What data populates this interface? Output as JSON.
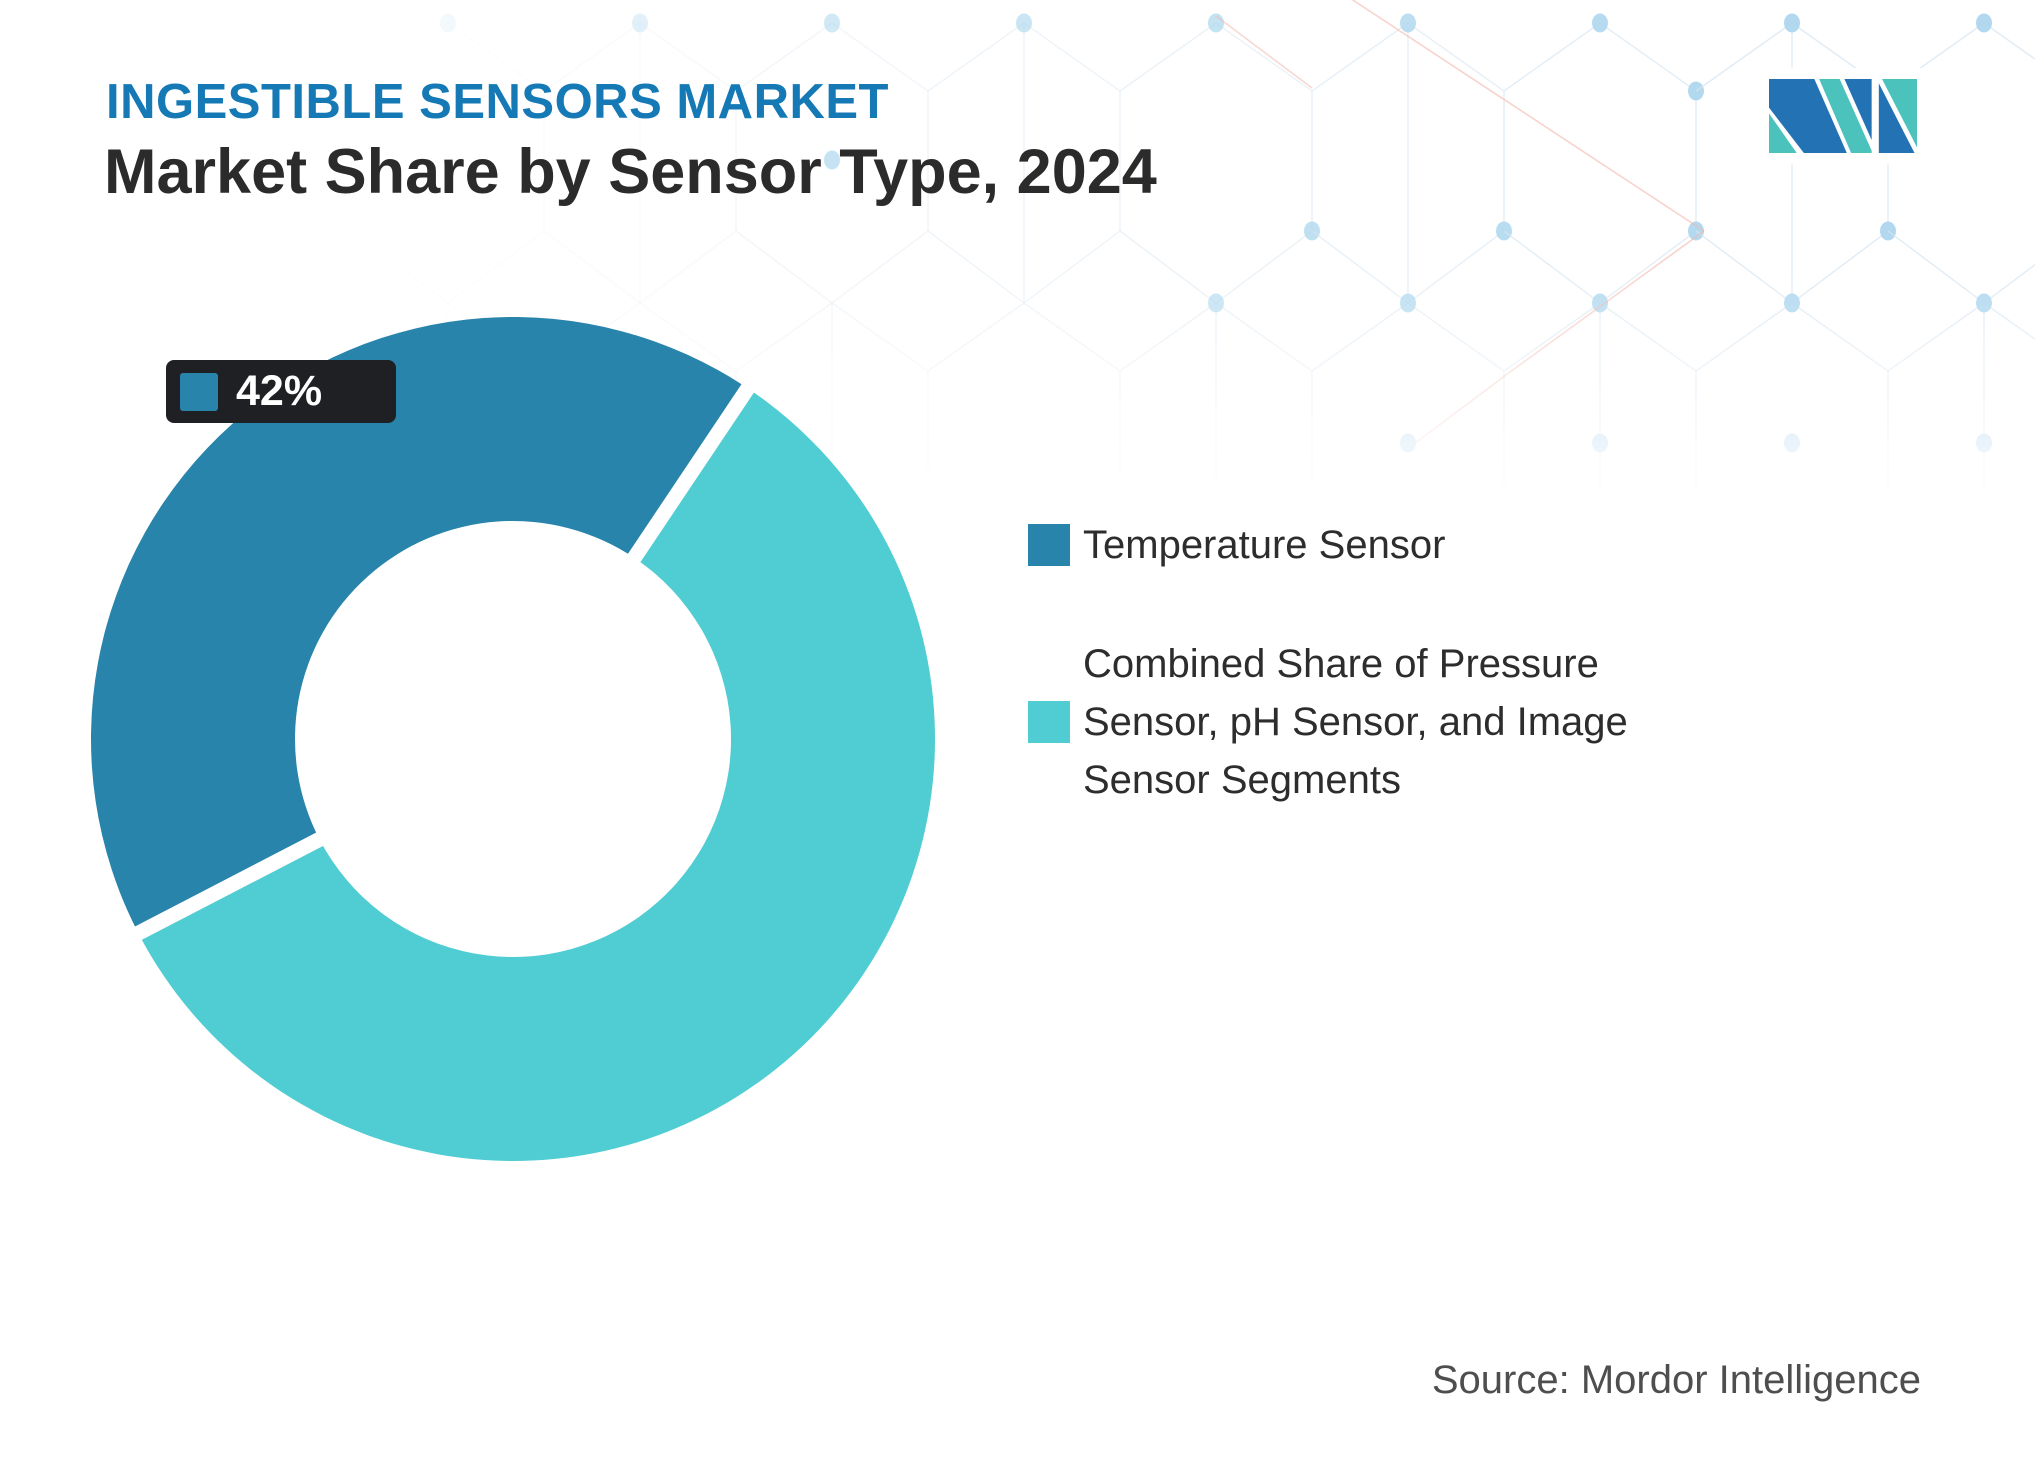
{
  "header": {
    "eyebrow": "INGESTIBLE SENSORS MARKET",
    "title": "Market Share by Sensor Type, 2024"
  },
  "chart_data": {
    "type": "pie",
    "subtype": "donut",
    "title": "Market Share by Sensor Type, 2024",
    "year": "2024",
    "labels": [
      "Temperature Sensor",
      "Combined Share of Pressure Sensor, pH Sensor, and Image Sensor Segments"
    ],
    "values": [
      42,
      58
    ],
    "unit": "%",
    "colors": [
      "#2884ab",
      "#4fcdd2"
    ],
    "data_labels": [
      "42%",
      ""
    ],
    "legend_position": "right",
    "start_angle_deg": 242.6
  },
  "donut_label": {
    "text": "42%"
  },
  "legend": {
    "items": [
      {
        "label": "Temperature Sensor",
        "color": "#2884ab"
      },
      {
        "lines": [
          "Combined Share of Pressure",
          "Sensor, pH Sensor, and Image",
          "Sensor Segments"
        ],
        "color": "#4fcdd2"
      }
    ]
  },
  "source": {
    "text": "Source: Mordor Intelligence"
  },
  "logo": {
    "alt": "mordor-intelligence-logo"
  },
  "theme": {
    "eyebrow_color": "#1579b6",
    "title_color": "#2b2b2b",
    "label_pill_bg": "#1e2023",
    "mesh_line": "#d7e5f1",
    "mesh_dot": "#aed7ee",
    "mesh_red": "#f2b7ac",
    "logo_blue": "#2373b4",
    "logo_teal": "#4cc2bd"
  }
}
